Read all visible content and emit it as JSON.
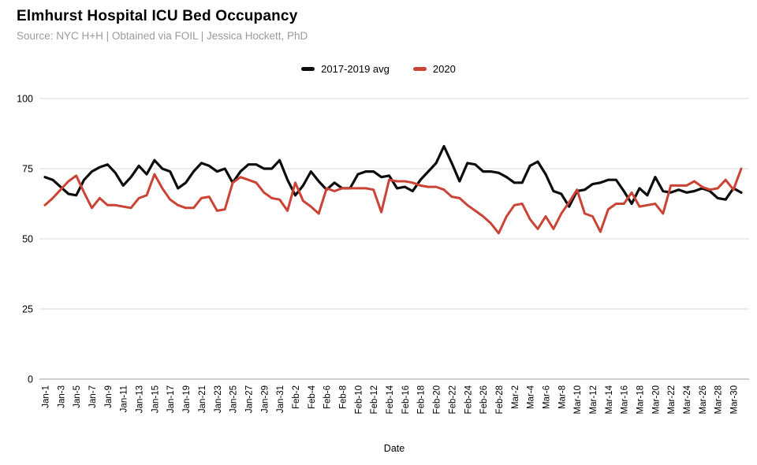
{
  "header": {
    "title": "Elmhurst Hospital ICU Bed Occupancy",
    "subtitle": "Source: NYC H+H | Obtained via FOIL | Jessica Hockett, PhD"
  },
  "legend": {
    "items": [
      {
        "label": "2017-2019 avg",
        "color": "#0d0d0d"
      },
      {
        "label": "2020",
        "color": "#cb4335"
      }
    ]
  },
  "axes": {
    "x_title": "Date",
    "y_tick_labels": [
      "0",
      "25",
      "50",
      "75",
      "100"
    ]
  },
  "colors": {
    "grid": "#e2e2e2",
    "baseline": "#b5b5b5",
    "tick_text": "#000000"
  },
  "chart_data": {
    "type": "line",
    "title": "Elmhurst Hospital ICU Bed Occupancy",
    "subtitle": "Source: NYC H+H | Obtained via FOIL | Jessica Hockett, PhD",
    "xlabel": "Date",
    "ylabel": "",
    "ylim": [
      0,
      100
    ],
    "yticks": [
      0,
      25,
      50,
      75,
      100
    ],
    "grid": true,
    "legend_position": "top",
    "x_tick_every": 2,
    "dates": [
      "Jan-1",
      "Jan-2",
      "Jan-3",
      "Jan-4",
      "Jan-5",
      "Jan-6",
      "Jan-7",
      "Jan-8",
      "Jan-9",
      "Jan-10",
      "Jan-11",
      "Jan-12",
      "Jan-13",
      "Jan-14",
      "Jan-15",
      "Jan-16",
      "Jan-17",
      "Jan-18",
      "Jan-19",
      "Jan-20",
      "Jan-21",
      "Jan-22",
      "Jan-23",
      "Jan-24",
      "Jan-25",
      "Jan-26",
      "Jan-27",
      "Jan-28",
      "Jan-29",
      "Jan-30",
      "Jan-31",
      "Feb-1",
      "Feb-2",
      "Feb-3",
      "Feb-4",
      "Feb-5",
      "Feb-6",
      "Feb-7",
      "Feb-8",
      "Feb-9",
      "Feb-10",
      "Feb-11",
      "Feb-12",
      "Feb-13",
      "Feb-14",
      "Feb-15",
      "Feb-16",
      "Feb-17",
      "Feb-18",
      "Feb-19",
      "Feb-20",
      "Feb-21",
      "Feb-22",
      "Feb-23",
      "Feb-24",
      "Feb-25",
      "Feb-26",
      "Feb-27",
      "Feb-28",
      "Mar-1",
      "Mar-2",
      "Mar-3",
      "Mar-4",
      "Mar-5",
      "Mar-6",
      "Mar-7",
      "Mar-8",
      "Mar-9",
      "Mar-10",
      "Mar-11",
      "Mar-12",
      "Mar-13",
      "Mar-14",
      "Mar-15",
      "Mar-16",
      "Mar-17",
      "Mar-18",
      "Mar-19",
      "Mar-20",
      "Mar-21",
      "Mar-22",
      "Mar-23",
      "Mar-24",
      "Mar-25",
      "Mar-26",
      "Mar-27",
      "Mar-28",
      "Mar-29",
      "Mar-30",
      "Mar-31"
    ],
    "series": [
      {
        "name": "2017-2019 avg",
        "color": "#0d0d0d",
        "stroke_width": 3.2,
        "values": [
          72,
          71,
          68.5,
          66,
          65.5,
          71,
          74,
          75.5,
          76.5,
          73.5,
          69,
          72,
          76,
          73,
          78,
          75,
          74,
          68,
          70,
          74,
          77,
          76,
          74,
          75,
          70,
          74,
          76.5,
          76.5,
          75,
          75,
          78,
          71,
          65.5,
          69,
          74,
          70.5,
          67.5,
          70,
          68,
          68,
          73,
          74,
          74,
          72,
          72.5,
          68,
          68.5,
          67,
          71,
          74,
          77,
          83,
          77,
          70.5,
          77,
          76.5,
          74,
          74,
          73.5,
          72,
          70,
          70,
          76,
          77.5,
          73,
          67,
          66,
          61.5,
          67,
          67.5,
          69.5,
          70,
          71,
          71,
          67,
          62.5,
          68,
          65.5,
          72,
          67,
          66.5,
          67.5,
          66.5,
          67,
          68,
          67,
          64.5,
          64,
          68,
          66.5
        ]
      },
      {
        "name": "2020",
        "color": "#cb4335",
        "stroke_width": 3,
        "values": [
          62,
          64.5,
          67.5,
          70.5,
          72.5,
          66.5,
          61,
          64.5,
          62,
          62,
          61.5,
          61,
          64.5,
          65.5,
          73,
          68,
          64,
          62,
          61,
          61,
          64.5,
          65,
          60,
          60.5,
          70,
          72,
          71,
          70,
          66.5,
          64.5,
          64,
          60,
          70,
          63.5,
          61.5,
          59,
          68,
          67,
          68,
          68,
          68,
          68,
          67.5,
          59.5,
          71,
          70.5,
          70.5,
          70,
          69,
          68.5,
          68.5,
          67.5,
          65,
          64.5,
          62,
          60,
          58,
          55.5,
          52,
          58,
          62,
          62.5,
          57,
          53.5,
          58,
          53.5,
          59,
          63,
          67.5,
          59,
          58,
          52.5,
          60.5,
          62.5,
          62.5,
          66.5,
          61.5,
          62,
          62.5,
          59,
          69,
          69,
          69,
          70.5,
          68.5,
          67.5,
          68,
          71,
          67.5,
          75
        ]
      }
    ]
  }
}
